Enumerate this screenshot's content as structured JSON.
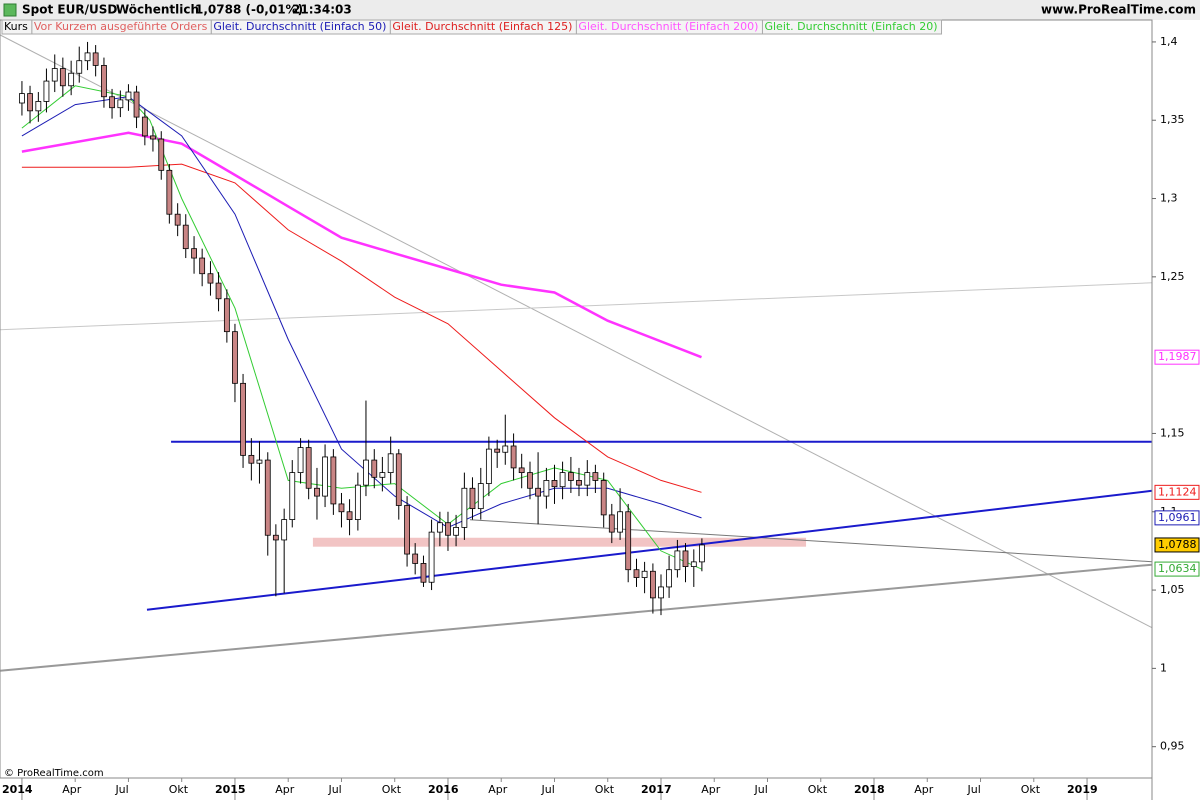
{
  "header": {
    "instrument": "Spot EUR/USD",
    "period": "Wöchentlich",
    "quote": "1,0788 (-0,01%)",
    "time": "21:34:03",
    "site": "www.ProRealTime.com"
  },
  "legend": [
    {
      "text": "Kurs",
      "color": "#000000"
    },
    {
      "text": "Vor Kurzem ausgeführte Orders",
      "color": "#e06060"
    },
    {
      "text": "Gleit. Durchschnitt (Einfach 50)",
      "color": "#1a1ab4"
    },
    {
      "text": "Gleit. Durchschnitt (Einfach 125)",
      "color": "#dd2020"
    },
    {
      "text": "Gleit. Durchschnitt (Einfach 200)",
      "color": "#ff55ff"
    },
    {
      "text": "Gleit. Durchschnitt (Einfach 20)",
      "color": "#33cc33"
    }
  ],
  "footer": "© ProRealTime.com",
  "chart_data": {
    "type": "candlestick",
    "up_color": "#ffffff",
    "down_color": "#c98585",
    "outline_color": "#000000",
    "xlim": [
      2013.897,
      2019.305
    ],
    "ylim": [
      0.93,
      1.414
    ],
    "yticks": [
      {
        "value": 1.4,
        "label": "1,4"
      },
      {
        "value": 1.35,
        "label": "1,35"
      },
      {
        "value": 1.3,
        "label": "1,3"
      },
      {
        "value": 1.25,
        "label": "1,25"
      },
      {
        "value": 1.15,
        "label": "1,15"
      },
      {
        "value": 1.1,
        "label": "1,1"
      },
      {
        "value": 1.05,
        "label": "1,05"
      },
      1,
      {
        "value": 0.95,
        "label": "0,95"
      }
    ],
    "xticks": [
      2014,
      {
        "value": 2014.25,
        "label": "Apr"
      },
      {
        "value": 2014.5,
        "label": "Jul"
      },
      {
        "value": 2014.75,
        "label": "Okt"
      },
      2015,
      {
        "value": 2015.25,
        "label": "Apr"
      },
      {
        "value": 2015.5,
        "label": "Jul"
      },
      {
        "value": 2015.75,
        "label": "Okt"
      },
      2016,
      {
        "value": 2016.25,
        "label": "Apr"
      },
      {
        "value": 2016.5,
        "label": "Jul"
      },
      {
        "value": 2016.75,
        "label": "Okt"
      },
      2017,
      {
        "value": 2017.25,
        "label": "Apr"
      },
      {
        "value": 2017.5,
        "label": "Jul"
      },
      {
        "value": 2017.75,
        "label": "Okt"
      },
      2018,
      {
        "value": 2018.25,
        "label": "Apr"
      },
      {
        "value": 2018.5,
        "label": "Jul"
      },
      {
        "value": 2018.75,
        "label": "Okt"
      },
      2019
    ],
    "x": [
      2014.0,
      2014.038,
      2014.077,
      2014.115,
      2014.154,
      2014.192,
      2014.231,
      2014.269,
      2014.308,
      2014.346,
      2014.385,
      2014.423,
      2014.462,
      2014.5,
      2014.538,
      2014.577,
      2014.615,
      2014.654,
      2014.692,
      2014.731,
      2014.769,
      2014.808,
      2014.846,
      2014.885,
      2014.923,
      2014.962,
      2015.0,
      2015.038,
      2015.077,
      2015.115,
      2015.154,
      2015.192,
      2015.231,
      2015.269,
      2015.308,
      2015.346,
      2015.385,
      2015.423,
      2015.462,
      2015.5,
      2015.538,
      2015.577,
      2015.615,
      2015.654,
      2015.692,
      2015.731,
      2015.769,
      2015.808,
      2015.846,
      2015.885,
      2015.923,
      2015.962,
      2016.0,
      2016.038,
      2016.077,
      2016.115,
      2016.154,
      2016.192,
      2016.231,
      2016.269,
      2016.308,
      2016.346,
      2016.385,
      2016.423,
      2016.462,
      2016.5,
      2016.538,
      2016.577,
      2016.615,
      2016.654,
      2016.692,
      2016.731,
      2016.769,
      2016.808,
      2016.846,
      2016.885,
      2016.923,
      2016.962,
      2017.0,
      2017.038,
      2017.077,
      2017.115,
      2017.154,
      2017.192
    ],
    "open": [
      1.361,
      1.367,
      1.356,
      1.362,
      1.375,
      1.383,
      1.372,
      1.38,
      1.388,
      1.393,
      1.385,
      1.365,
      1.358,
      1.363,
      1.368,
      1.352,
      1.34,
      1.338,
      1.318,
      1.29,
      1.283,
      1.268,
      1.262,
      1.252,
      1.246,
      1.236,
      1.215,
      1.182,
      1.136,
      1.131,
      1.133,
      1.085,
      1.082,
      1.095,
      1.125,
      1.141,
      1.115,
      1.11,
      1.135,
      1.105,
      1.1,
      1.095,
      1.117,
      1.133,
      1.122,
      1.125,
      1.137,
      1.104,
      1.073,
      1.067,
      1.055,
      1.087,
      1.093,
      1.085,
      1.09,
      1.115,
      1.102,
      1.118,
      1.14,
      1.138,
      1.142,
      1.128,
      1.125,
      1.115,
      1.11,
      1.12,
      1.116,
      1.125,
      1.12,
      1.117,
      1.125,
      1.12,
      1.098,
      1.087,
      1.1,
      1.063,
      1.058,
      1.062,
      1.045,
      1.052,
      1.063,
      1.075,
      1.065,
      1.068
    ],
    "high": [
      1.375,
      1.372,
      1.368,
      1.383,
      1.392,
      1.39,
      1.388,
      1.397,
      1.4,
      1.398,
      1.39,
      1.37,
      1.369,
      1.373,
      1.372,
      1.357,
      1.346,
      1.343,
      1.322,
      1.297,
      1.29,
      1.276,
      1.268,
      1.26,
      1.253,
      1.242,
      1.22,
      1.188,
      1.147,
      1.145,
      1.138,
      1.092,
      1.102,
      1.133,
      1.147,
      1.146,
      1.128,
      1.143,
      1.14,
      1.112,
      1.108,
      1.125,
      1.171,
      1.14,
      1.135,
      1.148,
      1.14,
      1.11,
      1.08,
      1.072,
      1.095,
      1.1,
      1.1,
      1.098,
      1.125,
      1.122,
      1.128,
      1.148,
      1.146,
      1.162,
      1.15,
      1.137,
      1.132,
      1.138,
      1.128,
      1.13,
      1.132,
      1.135,
      1.128,
      1.133,
      1.13,
      1.125,
      1.105,
      1.115,
      1.105,
      1.07,
      1.068,
      1.067,
      1.06,
      1.072,
      1.082,
      1.08,
      1.076,
      1.083
    ],
    "low": [
      1.353,
      1.348,
      1.349,
      1.355,
      1.368,
      1.365,
      1.366,
      1.374,
      1.382,
      1.378,
      1.358,
      1.351,
      1.352,
      1.356,
      1.345,
      1.334,
      1.33,
      1.312,
      1.284,
      1.276,
      1.262,
      1.252,
      1.244,
      1.238,
      1.228,
      1.208,
      1.17,
      1.128,
      1.12,
      1.118,
      1.072,
      1.046,
      1.048,
      1.09,
      1.118,
      1.108,
      1.095,
      1.103,
      1.098,
      1.09,
      1.085,
      1.088,
      1.11,
      1.115,
      1.113,
      1.118,
      1.095,
      1.065,
      1.06,
      1.052,
      1.05,
      1.078,
      1.075,
      1.078,
      1.082,
      1.095,
      1.095,
      1.11,
      1.128,
      1.13,
      1.12,
      1.115,
      1.108,
      1.092,
      1.102,
      1.105,
      1.108,
      1.112,
      1.11,
      1.11,
      1.112,
      1.09,
      1.08,
      1.082,
      1.055,
      1.052,
      1.048,
      1.035,
      1.034,
      1.045,
      1.058,
      1.055,
      1.052,
      1.062
    ],
    "close": [
      1.367,
      1.356,
      1.362,
      1.375,
      1.383,
      1.372,
      1.38,
      1.388,
      1.393,
      1.385,
      1.365,
      1.358,
      1.363,
      1.368,
      1.352,
      1.34,
      1.338,
      1.318,
      1.29,
      1.283,
      1.268,
      1.262,
      1.252,
      1.246,
      1.236,
      1.215,
      1.182,
      1.136,
      1.131,
      1.133,
      1.085,
      1.082,
      1.095,
      1.125,
      1.141,
      1.115,
      1.11,
      1.135,
      1.105,
      1.1,
      1.095,
      1.117,
      1.133,
      1.122,
      1.125,
      1.137,
      1.104,
      1.073,
      1.067,
      1.055,
      1.087,
      1.093,
      1.085,
      1.09,
      1.115,
      1.102,
      1.118,
      1.14,
      1.138,
      1.142,
      1.128,
      1.125,
      1.115,
      1.11,
      1.12,
      1.116,
      1.125,
      1.12,
      1.117,
      1.125,
      1.12,
      1.098,
      1.087,
      1.1,
      1.063,
      1.058,
      1.062,
      1.045,
      1.052,
      1.063,
      1.075,
      1.065,
      1.068,
      1.0788
    ],
    "series": [
      {
        "name": "Gleit. Durchschnitt (Einfach 200)",
        "color": "#ff33ff",
        "width": 2.5,
        "x": [
          2014.0,
          2014.5,
          2014.75,
          2015.0,
          2015.25,
          2015.5,
          2015.75,
          2016.0,
          2016.25,
          2016.5,
          2016.75,
          2017.19
        ],
        "values": [
          1.33,
          1.342,
          1.335,
          1.315,
          1.295,
          1.275,
          1.265,
          1.255,
          1.245,
          1.24,
          1.222,
          1.1987
        ]
      },
      {
        "name": "Gleit. Durchschnitt (Einfach 125)",
        "color": "#ee1c1c",
        "width": 1,
        "x": [
          2014.0,
          2014.5,
          2014.75,
          2015.0,
          2015.25,
          2015.5,
          2015.75,
          2016.0,
          2016.25,
          2016.5,
          2016.75,
          2017.0,
          2017.19
        ],
        "values": [
          1.32,
          1.32,
          1.322,
          1.31,
          1.28,
          1.26,
          1.237,
          1.22,
          1.19,
          1.16,
          1.135,
          1.12,
          1.1124
        ]
      },
      {
        "name": "Gleit. Durchschnitt (Einfach 50)",
        "color": "#1c1cb4",
        "width": 1,
        "x": [
          2014.0,
          2014.25,
          2014.5,
          2014.75,
          2015.0,
          2015.25,
          2015.5,
          2015.75,
          2016.0,
          2016.25,
          2016.5,
          2016.75,
          2017.0,
          2017.19
        ],
        "values": [
          1.34,
          1.36,
          1.365,
          1.34,
          1.29,
          1.21,
          1.14,
          1.11,
          1.09,
          1.105,
          1.115,
          1.115,
          1.105,
          1.0961
        ]
      },
      {
        "name": "Gleit. Durchschnitt (Einfach 20)",
        "color": "#33cc33",
        "width": 1,
        "x": [
          2014.0,
          2014.25,
          2014.5,
          2014.6,
          2014.75,
          2015.0,
          2015.25,
          2015.5,
          2015.75,
          2016.0,
          2016.25,
          2016.5,
          2016.75,
          2017.0,
          2017.19
        ],
        "values": [
          1.345,
          1.372,
          1.365,
          1.35,
          1.3,
          1.23,
          1.12,
          1.115,
          1.118,
          1.092,
          1.118,
          1.128,
          1.12,
          1.075,
          1.0634
        ]
      }
    ],
    "trend_lines": [
      {
        "color": "#b0b0b0",
        "width": 1,
        "x": [
          2013.897,
          2019.305
        ],
        "values": [
          1.4045,
          1.026
        ]
      },
      {
        "color": "#c8c8c8",
        "width": 1,
        "x": [
          2013.897,
          2019.305
        ],
        "values": [
          1.2162,
          1.2462
        ]
      },
      {
        "color": "#999999",
        "width": 2,
        "x": [
          2013.897,
          2019.305
        ],
        "values": [
          0.9985,
          1.0662
        ]
      },
      {
        "color": "#777777",
        "width": 1,
        "x": [
          2016.103,
          2019.305
        ],
        "values": [
          1.0949,
          1.0681
        ]
      },
      {
        "color": "#1a1acc",
        "width": 2,
        "x": [
          2014.7,
          2019.305
        ],
        "values": [
          1.1447,
          1.1447
        ]
      },
      {
        "color": "#1a1acc",
        "width": 2,
        "x": [
          2014.587,
          2019.305
        ],
        "values": [
          1.0374,
          1.1134
        ]
      }
    ],
    "zone": {
      "color": "#f2c4c4",
      "x": [
        2015.366,
        2017.681
      ],
      "values": [
        1.0777,
        1.0834
      ]
    },
    "price_labels": [
      {
        "value": 1.1987,
        "label": "1,1987",
        "color": "#ff33ff",
        "fill": "#ffffff"
      },
      {
        "value": 1.1124,
        "label": "1,1124",
        "color": "#ee1c1c",
        "fill": "#ffffff"
      },
      {
        "value": 1.0961,
        "label": "1,0961",
        "color": "#1c1cb4",
        "fill": "#ffffff"
      },
      {
        "value": 1.0788,
        "label": "1,0788",
        "color": "#000000",
        "fill": "#ffcc00"
      },
      {
        "value": 1.0634,
        "label": "1,0634",
        "color": "#33aa33",
        "fill": "#ffffff"
      }
    ]
  }
}
